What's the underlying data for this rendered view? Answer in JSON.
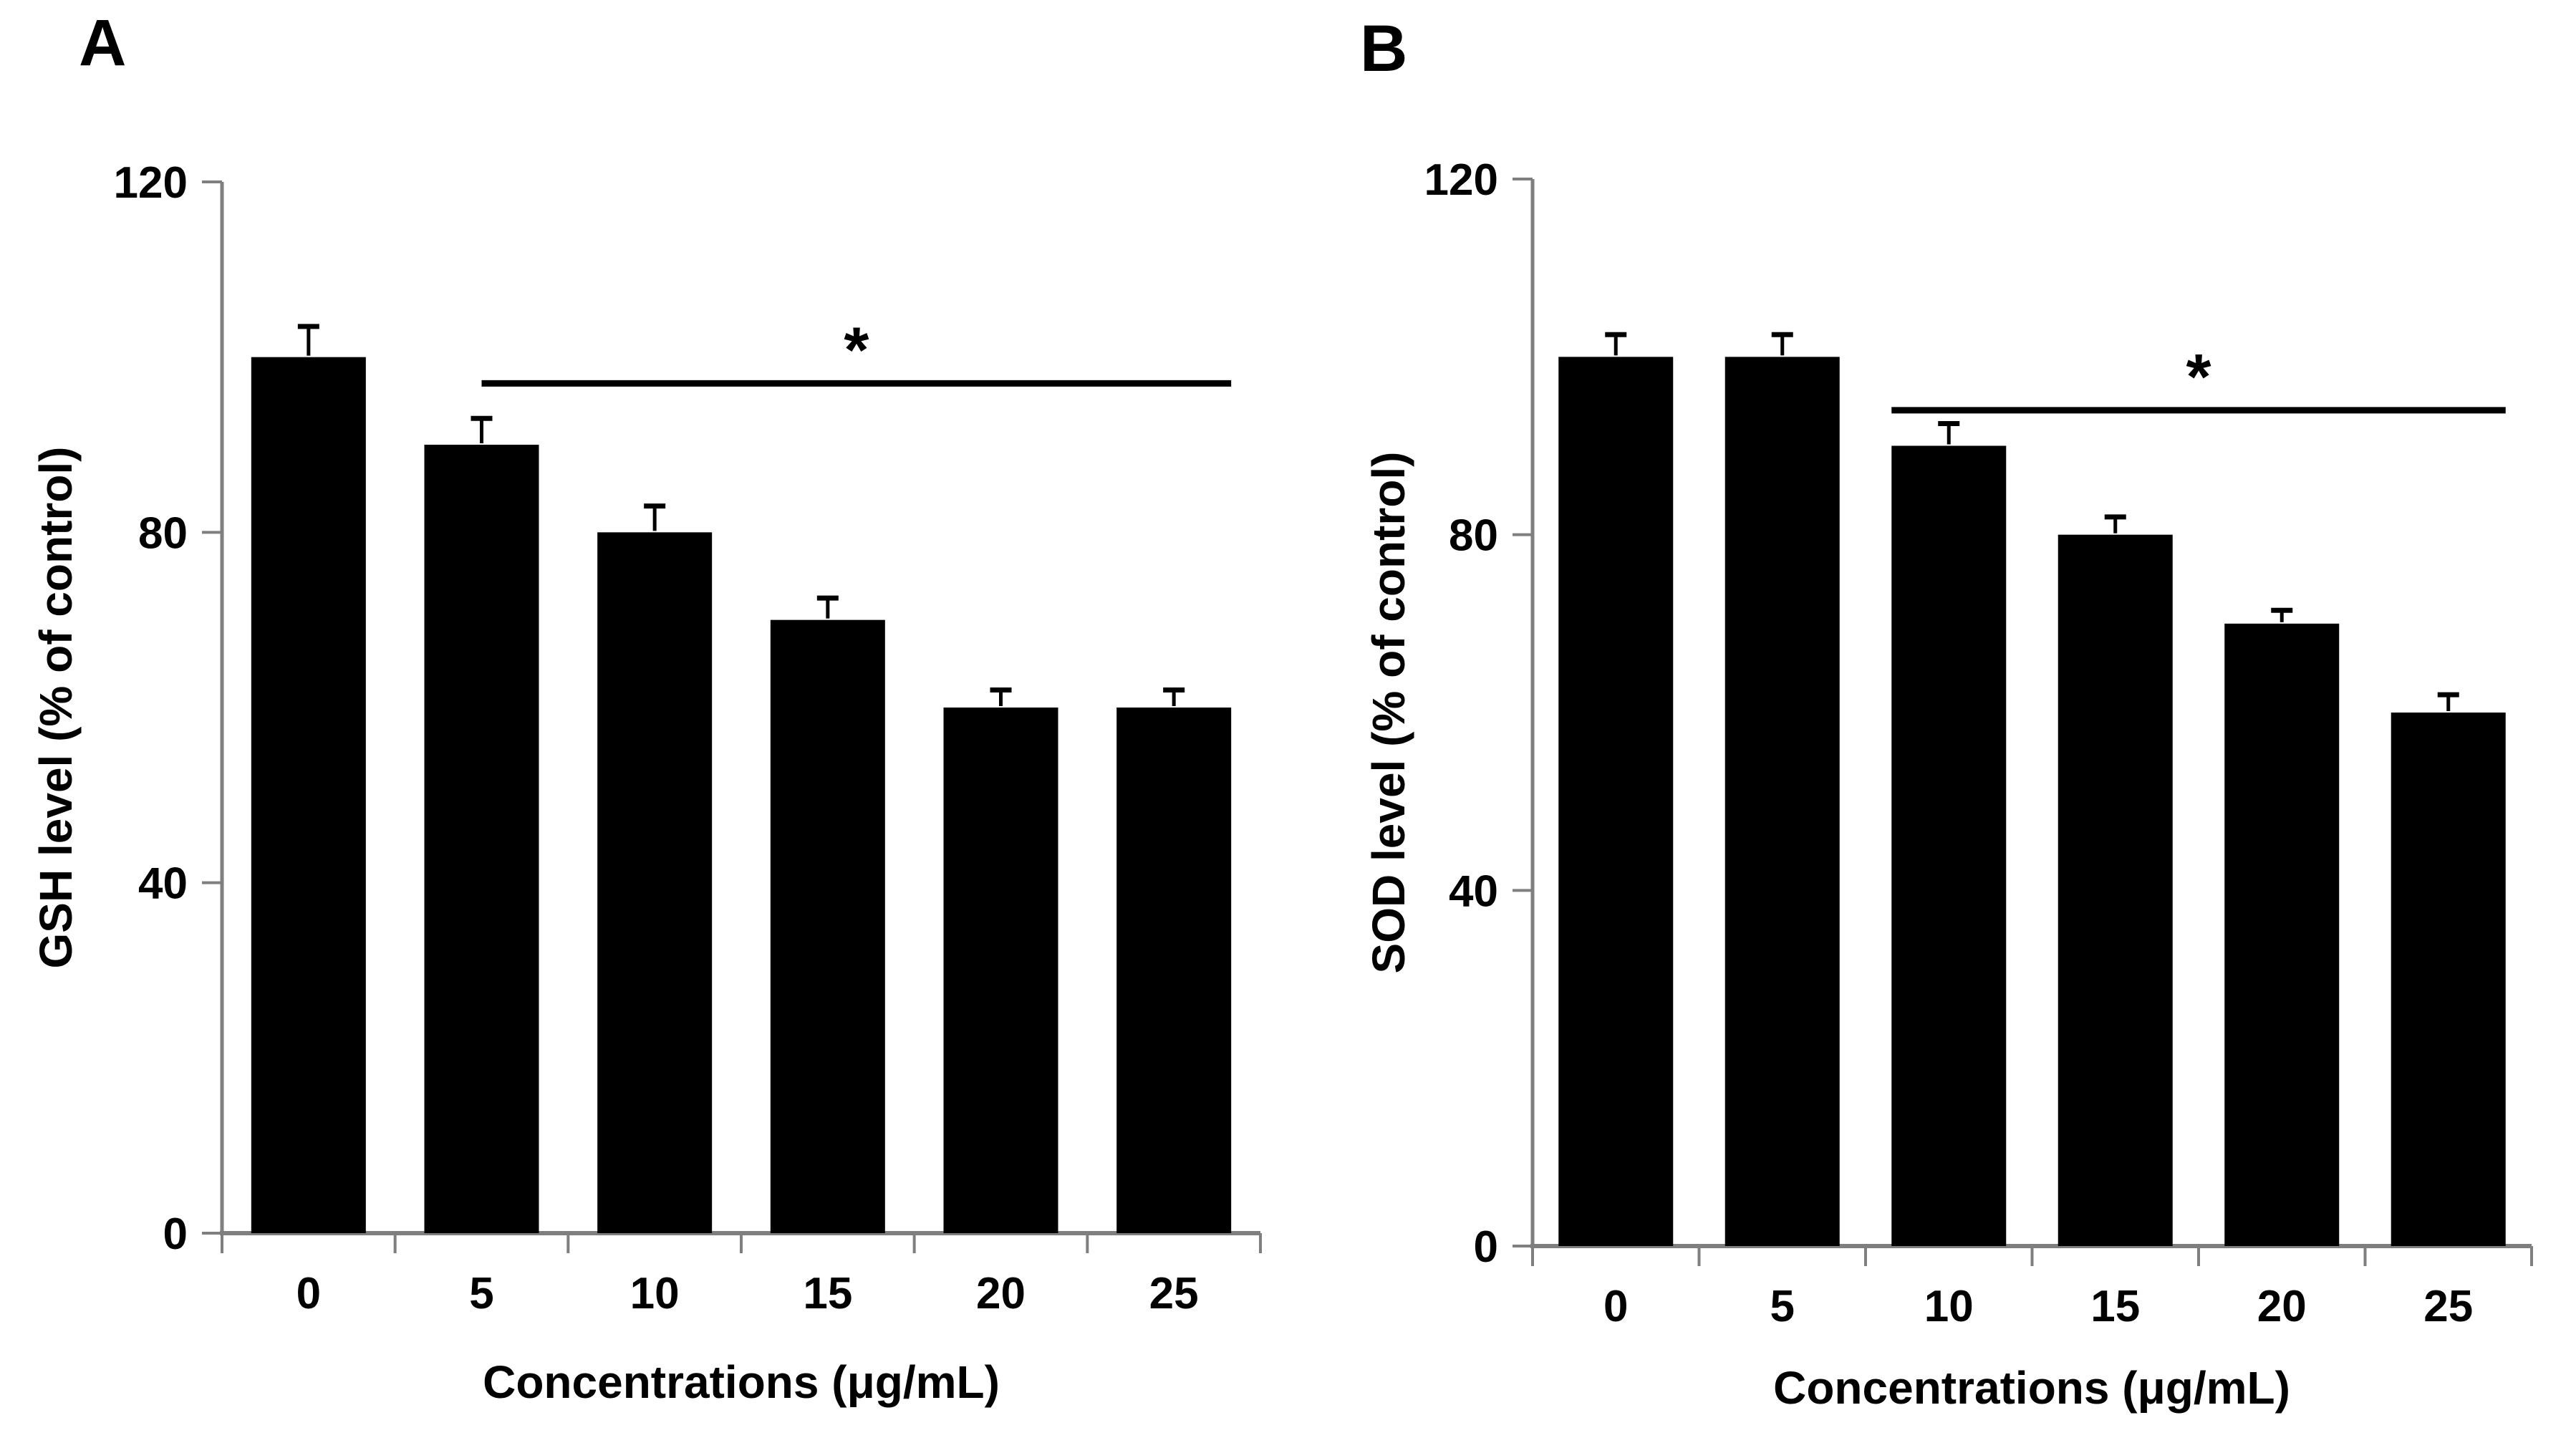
{
  "figure": {
    "background_color": "#ffffff",
    "bar_color": "#000000",
    "axis_color": "#7f7f7f",
    "text_color": "#000000",
    "error_bar_color": "#000000",
    "significance_line_color": "#000000"
  },
  "chart_data": [
    {
      "type": "bar",
      "panel_label": "A",
      "title": "",
      "ylabel": "GSH level (% of control)",
      "xlabel": "Concentrations (μg/mL)",
      "categories": [
        "0",
        "5",
        "10",
        "15",
        "20",
        "25"
      ],
      "values": [
        100,
        90,
        80,
        70,
        60,
        60
      ],
      "errors_plus": [
        3.5,
        3,
        3,
        2.5,
        2,
        2
      ],
      "yticks": [
        0,
        40,
        80,
        120
      ],
      "ylim": [
        0,
        120
      ],
      "grid": false,
      "legend": "none",
      "significance": {
        "marker": "*",
        "y_value": 97,
        "from_category": "5",
        "from_anchor": "center",
        "to_category": "25",
        "to_anchor": "right"
      }
    },
    {
      "type": "bar",
      "panel_label": "B",
      "title": "",
      "ylabel": "SOD level (% of control)",
      "xlabel": "Concentrations (μg/mL)",
      "categories": [
        "0",
        "5",
        "10",
        "15",
        "20",
        "25"
      ],
      "values": [
        100,
        100,
        90,
        80,
        70,
        60
      ],
      "errors_plus": [
        2.5,
        2.5,
        2.5,
        2,
        1.5,
        2
      ],
      "yticks": [
        0,
        40,
        80,
        120
      ],
      "ylim": [
        0,
        120
      ],
      "grid": false,
      "legend": "none",
      "significance": {
        "marker": "*",
        "y_value": 94,
        "from_category": "10",
        "from_anchor": "left",
        "to_category": "25",
        "to_anchor": "right"
      }
    }
  ]
}
